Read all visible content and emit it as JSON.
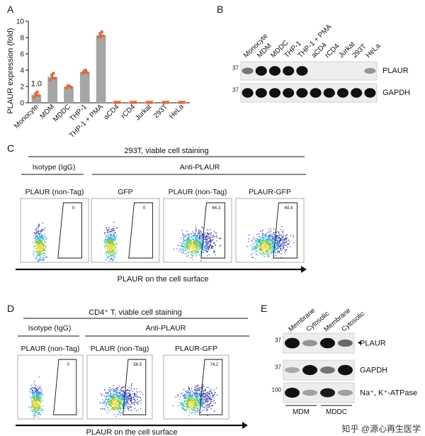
{
  "figure": {
    "panel_labels": {
      "a": "A",
      "b": "B",
      "c": "C",
      "d": "D",
      "e": "E"
    },
    "watermark": "知乎 @源心再生医学"
  },
  "chart_data": {
    "type": "bar",
    "title": "",
    "ylabel": "PLAUR expression (fold)",
    "xlabel": "",
    "ylim": [
      0,
      10
    ],
    "yticks": [
      0,
      2,
      4,
      6,
      8,
      10
    ],
    "categories": [
      "Monocyte",
      "MDM",
      "MDDC",
      "THP-1",
      "THP-1 + PMA",
      "aCD4",
      "rCD4",
      "Jurkat",
      "293T",
      "HeLa"
    ],
    "values": [
      1.0,
      3.2,
      2.0,
      3.8,
      8.3,
      0.05,
      0.05,
      0.05,
      0.05,
      0.05
    ],
    "errors": [
      0.25,
      0.3,
      0.15,
      0.2,
      0.3,
      0.02,
      0.02,
      0.02,
      0.02,
      0.02
    ],
    "points": [
      [
        0.7,
        1.1,
        1.3,
        0.9
      ],
      [
        2.8,
        3.4,
        3.6,
        3.0
      ],
      [
        1.8,
        2.1,
        2.0,
        1.9
      ],
      [
        3.6,
        3.9,
        4.0,
        3.7
      ],
      [
        8.0,
        8.4,
        8.7,
        8.2
      ],
      [
        0.05,
        0.05,
        0.05,
        0.05
      ],
      [
        0.05,
        0.05,
        0.05,
        0.05
      ],
      [
        0.05,
        0.05,
        0.05,
        0.05
      ],
      [
        0.05,
        0.05,
        0.05,
        0.05
      ],
      [
        0.05,
        0.05,
        0.05,
        0.05
      ]
    ],
    "annotation": "1.0",
    "bar_color": "#a6a6a6",
    "point_color": "#e36c3c"
  },
  "panel_b": {
    "lanes": [
      "Monocyte",
      "MDM",
      "MDDC",
      "THP-1",
      "THP-1 + PMA",
      "aCD4",
      "rCD4",
      "Jurkat",
      "293T",
      "HeLa"
    ],
    "rows": [
      {
        "label": "PLAUR",
        "marker": "37",
        "intensities": [
          0.3,
          0.95,
          0.95,
          0.9,
          0.95,
          0.0,
          0.0,
          0.0,
          0.0,
          0.15
        ]
      },
      {
        "label": "GAPDH",
        "marker": "37",
        "intensities": [
          0.95,
          0.95,
          0.95,
          0.95,
          0.95,
          0.95,
          0.95,
          0.95,
          0.95,
          0.95
        ]
      }
    ]
  },
  "panel_c": {
    "title": "293T, viable cell staining",
    "group_isotype": "Isotype (IgG)",
    "group_anti": "Anti-PLAUR",
    "plots": [
      {
        "label": "PLAUR (non-Tag)",
        "gate_value": "0",
        "shifted": false
      },
      {
        "label": "GFP",
        "gate_value": "0",
        "shifted": false
      },
      {
        "label": "PLAUR (non-Tag)",
        "gate_value": "66.3",
        "shifted": true
      },
      {
        "label": "PLAUR-GFP",
        "gate_value": "69.4",
        "shifted": true
      }
    ],
    "axis_label": "PLAUR on the cell surface"
  },
  "panel_d": {
    "title": "CD4⁺ T, viable cell staining",
    "group_isotype": "Isotype (IgG)",
    "group_anti": "Anti-PLAUR",
    "plots": [
      {
        "label": "PLAUR (non-Tag)",
        "gate_value": "0",
        "shifted": false
      },
      {
        "label": "PLAUR (non-Tag)",
        "gate_value": "56.5",
        "shifted": true
      },
      {
        "label": "PLAUR-GFP",
        "gate_value": "74.2",
        "shifted": true
      }
    ],
    "axis_label": "PLAUR on the cell surface"
  },
  "panel_e": {
    "lanes": [
      "Membrane",
      "Cytosolic",
      "Membrane",
      "Cytosolic"
    ],
    "groups": [
      "MDM",
      "MDDC"
    ],
    "rows": [
      {
        "label": "PLAUR",
        "marker": "37",
        "intensities": [
          1.0,
          0.15,
          0.95,
          0.35
        ]
      },
      {
        "label": "GAPDH",
        "marker": "37",
        "intensities": [
          0.05,
          0.9,
          0.3,
          0.95
        ]
      },
      {
        "label": "Na⁺, K⁺-ATPase",
        "marker": "100",
        "intensities": [
          0.9,
          0.1,
          0.7,
          0.1
        ]
      }
    ],
    "arrow": "◄"
  }
}
